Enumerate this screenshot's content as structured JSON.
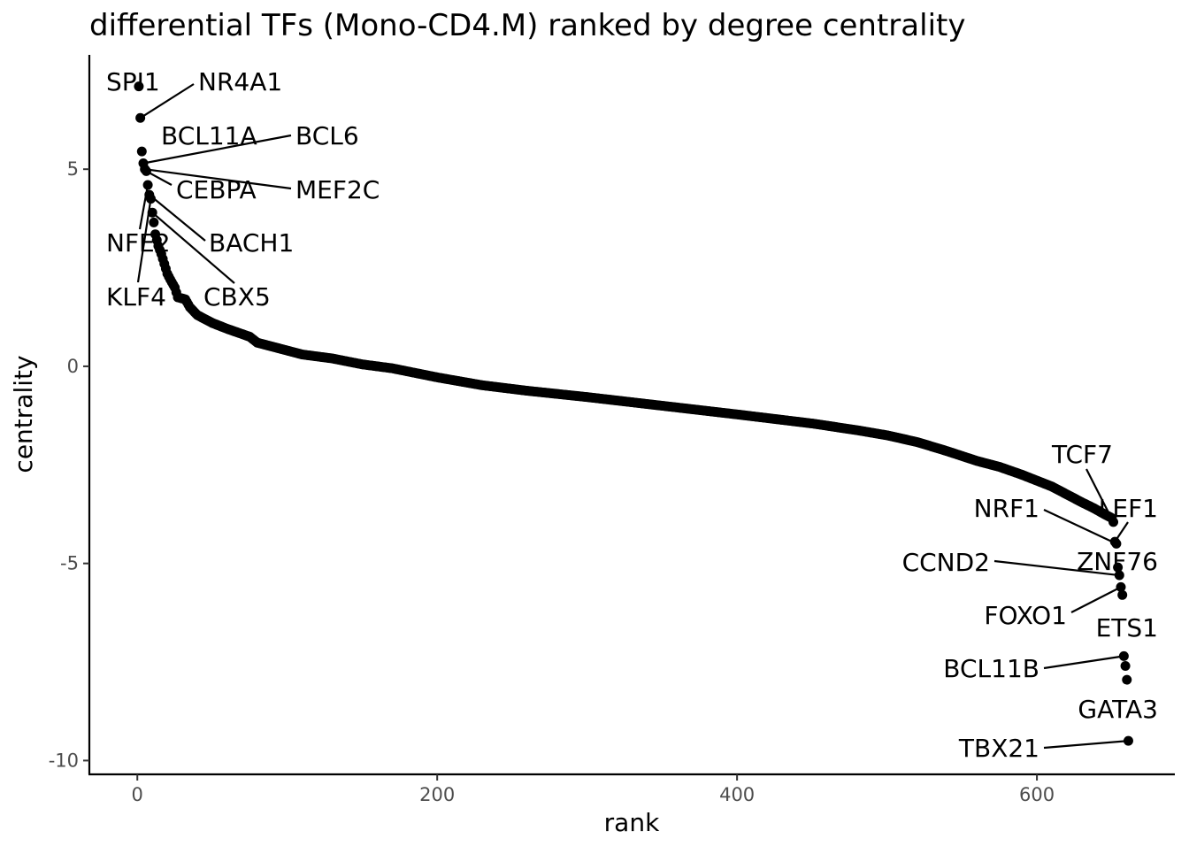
{
  "chart_data": {
    "type": "scatter",
    "title": "differential TFs (Mono-CD4.M) ranked by degree centrality",
    "xlabel": "rank",
    "ylabel": "centrality",
    "xlim": [
      -32,
      692
    ],
    "ylim": [
      -10.35,
      7.9
    ],
    "x_ticks": [
      0,
      200,
      400,
      600
    ],
    "x_tick_labels": [
      "0",
      "200",
      "400",
      "600"
    ],
    "y_ticks": [
      -10,
      -5,
      0,
      5
    ],
    "y_tick_labels": [
      "-10",
      "-5",
      "0",
      "5"
    ],
    "grid": false,
    "legend": "none",
    "point_color": "#000000",
    "n_points": 662,
    "curve_anchors": [
      [
        1,
        7.1
      ],
      [
        2,
        6.3
      ],
      [
        3,
        5.45
      ],
      [
        4,
        5.15
      ],
      [
        5,
        5.0
      ],
      [
        6,
        4.95
      ],
      [
        7,
        4.6
      ],
      [
        8,
        4.35
      ],
      [
        9,
        4.25
      ],
      [
        10,
        3.9
      ],
      [
        11,
        3.65
      ],
      [
        12,
        3.35
      ],
      [
        14,
        3.05
      ],
      [
        16,
        2.85
      ],
      [
        18,
        2.6
      ],
      [
        20,
        2.35
      ],
      [
        22,
        2.2
      ],
      [
        25,
        2.0
      ],
      [
        27,
        1.75
      ],
      [
        32,
        1.7
      ],
      [
        35,
        1.5
      ],
      [
        40,
        1.3
      ],
      [
        50,
        1.1
      ],
      [
        60,
        0.95
      ],
      [
        75,
        0.75
      ],
      [
        80,
        0.6
      ],
      [
        90,
        0.5
      ],
      [
        100,
        0.4
      ],
      [
        110,
        0.3
      ],
      [
        130,
        0.2
      ],
      [
        150,
        0.05
      ],
      [
        170,
        -0.05
      ],
      [
        200,
        -0.28
      ],
      [
        230,
        -0.48
      ],
      [
        260,
        -0.62
      ],
      [
        300,
        -0.78
      ],
      [
        350,
        -1.0
      ],
      [
        400,
        -1.22
      ],
      [
        450,
        -1.45
      ],
      [
        480,
        -1.62
      ],
      [
        500,
        -1.75
      ],
      [
        520,
        -1.92
      ],
      [
        540,
        -2.15
      ],
      [
        560,
        -2.4
      ],
      [
        575,
        -2.55
      ],
      [
        590,
        -2.75
      ],
      [
        600,
        -2.9
      ],
      [
        610,
        -3.05
      ],
      [
        620,
        -3.25
      ],
      [
        630,
        -3.45
      ],
      [
        638,
        -3.6
      ],
      [
        645,
        -3.75
      ],
      [
        650,
        -3.85
      ]
    ],
    "labeled_points": [
      {
        "name": "SPI1",
        "x": 1,
        "y": 7.1
      },
      {
        "name": "NR4A1",
        "x": 2,
        "y": 6.3
      },
      {
        "name": "BCL11A",
        "x": 3,
        "y": 5.45
      },
      {
        "name": "BCL6",
        "x": 4,
        "y": 5.15
      },
      {
        "name": "MEF2C",
        "x": 5,
        "y": 5.0
      },
      {
        "name": "CEBPA",
        "x": 6,
        "y": 4.95
      },
      {
        "name": "NFE2",
        "x": 7,
        "y": 4.6
      },
      {
        "name": "BACH1",
        "x": 8,
        "y": 4.35
      },
      {
        "name": "KLF4",
        "x": 9,
        "y": 4.25
      },
      {
        "name": "CBX5",
        "x": 10,
        "y": 3.9
      },
      {
        "name": "TCF7",
        "x": 651,
        "y": -3.95
      },
      {
        "name": "LEF1",
        "x": 652,
        "y": -4.45
      },
      {
        "name": "NRF1",
        "x": 653,
        "y": -4.5
      },
      {
        "name": "ZNF76",
        "x": 654,
        "y": -5.1
      },
      {
        "name": "CCND2",
        "x": 655,
        "y": -5.3
      },
      {
        "name": "FOXO1",
        "x": 656,
        "y": -5.6
      },
      {
        "name": "ETS1",
        "x": 657,
        "y": -5.8
      },
      {
        "name": "BCL11B",
        "x": 658,
        "y": -7.35
      },
      {
        "name": "GATA3",
        "x": 659,
        "y": -7.6
      },
      {
        "name": "TBX21",
        "x": 661,
        "y": -9.5
      }
    ],
    "extra_points": [
      {
        "x": 660,
        "y": -7.95
      }
    ]
  }
}
